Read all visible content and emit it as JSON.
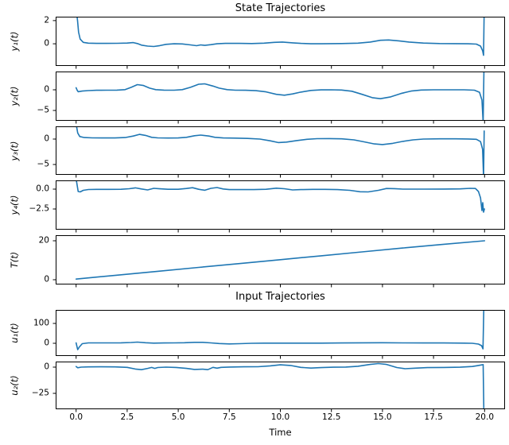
{
  "figure": {
    "state_title": "State Trajectories",
    "input_title": "Input Trajectories"
  },
  "line_color": "#1f77b4",
  "xaxis": {
    "label": "Time",
    "xlim": [
      -1,
      21
    ],
    "tick_values": [
      0,
      2.5,
      5,
      7.5,
      10,
      12.5,
      15,
      17.5,
      20
    ],
    "tick_labels": [
      "0.0",
      "2.5",
      "5.0",
      "7.5",
      "10.0",
      "12.5",
      "15.0",
      "17.5",
      "20.0"
    ]
  },
  "chart_data": [
    {
      "type": "line",
      "title": "State Trajectories",
      "ylabel": "y₁(t)",
      "ylim": [
        -1.92,
        2.34
      ],
      "yticks": [
        {
          "v": 2,
          "label": "2"
        },
        {
          "v": 0,
          "label": "0"
        }
      ],
      "points": [
        [
          0,
          3
        ],
        [
          0.07,
          2.0
        ],
        [
          0.12,
          1.0
        ],
        [
          0.2,
          0.4
        ],
        [
          0.35,
          0.12
        ],
        [
          0.6,
          0.05
        ],
        [
          1,
          0.03
        ],
        [
          1.5,
          0.03
        ],
        [
          2,
          0.04
        ],
        [
          2.5,
          0.06
        ],
        [
          2.8,
          0.1
        ],
        [
          3.0,
          0.02
        ],
        [
          3.2,
          -0.12
        ],
        [
          3.5,
          -0.2
        ],
        [
          3.8,
          -0.24
        ],
        [
          4.1,
          -0.16
        ],
        [
          4.4,
          -0.05
        ],
        [
          4.8,
          0.0
        ],
        [
          5.2,
          -0.02
        ],
        [
          5.6,
          -0.1
        ],
        [
          5.9,
          -0.17
        ],
        [
          6.1,
          -0.1
        ],
        [
          6.3,
          -0.14
        ],
        [
          6.6,
          -0.08
        ],
        [
          6.9,
          0.0
        ],
        [
          7.3,
          0.03
        ],
        [
          8,
          0.03
        ],
        [
          8.6,
          0.02
        ],
        [
          9.2,
          0.05
        ],
        [
          9.7,
          0.12
        ],
        [
          10.1,
          0.15
        ],
        [
          10.6,
          0.08
        ],
        [
          11,
          0.03
        ],
        [
          11.5,
          0.0
        ],
        [
          12,
          0.0
        ],
        [
          13,
          0.02
        ],
        [
          13.8,
          0.05
        ],
        [
          14.4,
          0.15
        ],
        [
          14.9,
          0.3
        ],
        [
          15.3,
          0.33
        ],
        [
          15.8,
          0.25
        ],
        [
          16.3,
          0.15
        ],
        [
          17,
          0.06
        ],
        [
          17.8,
          0.02
        ],
        [
          18.5,
          0.01
        ],
        [
          19.2,
          0.0
        ],
        [
          19.6,
          -0.03
        ],
        [
          19.8,
          -0.2
        ],
        [
          19.9,
          -0.6
        ],
        [
          19.95,
          -1.0
        ],
        [
          19.98,
          3
        ]
      ]
    },
    {
      "type": "line",
      "ylabel": "y₂(t)",
      "ylim": [
        -7.5,
        4.43
      ],
      "yticks": [
        {
          "v": 0,
          "label": "0"
        },
        {
          "v": -5,
          "label": "−5"
        }
      ],
      "points": [
        [
          0,
          0.5
        ],
        [
          0.05,
          -0.1
        ],
        [
          0.1,
          -0.45
        ],
        [
          0.3,
          -0.3
        ],
        [
          0.6,
          -0.18
        ],
        [
          1,
          -0.12
        ],
        [
          1.5,
          -0.1
        ],
        [
          2,
          -0.08
        ],
        [
          2.4,
          0.05
        ],
        [
          2.7,
          0.6
        ],
        [
          3.0,
          1.25
        ],
        [
          3.3,
          1.05
        ],
        [
          3.6,
          0.4
        ],
        [
          3.9,
          0.05
        ],
        [
          4.3,
          -0.08
        ],
        [
          4.8,
          -0.1
        ],
        [
          5.2,
          0.05
        ],
        [
          5.6,
          0.6
        ],
        [
          6.0,
          1.35
        ],
        [
          6.3,
          1.45
        ],
        [
          6.7,
          0.9
        ],
        [
          7.0,
          0.4
        ],
        [
          7.4,
          0.05
        ],
        [
          7.8,
          -0.1
        ],
        [
          8.3,
          -0.12
        ],
        [
          8.8,
          -0.2
        ],
        [
          9.3,
          -0.5
        ],
        [
          9.8,
          -1.1
        ],
        [
          10.2,
          -1.3
        ],
        [
          10.6,
          -1.0
        ],
        [
          11,
          -0.55
        ],
        [
          11.5,
          -0.15
        ],
        [
          12,
          -0.02
        ],
        [
          12.5,
          0.0
        ],
        [
          13,
          -0.05
        ],
        [
          13.5,
          -0.35
        ],
        [
          14,
          -1.1
        ],
        [
          14.5,
          -1.9
        ],
        [
          14.9,
          -2.15
        ],
        [
          15.4,
          -1.7
        ],
        [
          15.9,
          -0.9
        ],
        [
          16.4,
          -0.3
        ],
        [
          16.9,
          -0.05
        ],
        [
          17.5,
          0.0
        ],
        [
          18.2,
          0.0
        ],
        [
          19,
          0.0
        ],
        [
          19.5,
          -0.1
        ],
        [
          19.75,
          -0.6
        ],
        [
          19.87,
          -2.5
        ],
        [
          19.93,
          -8
        ],
        [
          19.97,
          5
        ]
      ]
    },
    {
      "type": "line",
      "ylabel": "y₃(t)",
      "ylim": [
        -7.03,
        2.5
      ],
      "yticks": [
        {
          "v": 0,
          "label": "0"
        },
        {
          "v": -5,
          "label": "−5"
        }
      ],
      "points": [
        [
          0,
          3
        ],
        [
          0.08,
          1.2
        ],
        [
          0.18,
          0.5
        ],
        [
          0.4,
          0.3
        ],
        [
          0.8,
          0.24
        ],
        [
          1.3,
          0.22
        ],
        [
          1.9,
          0.22
        ],
        [
          2.4,
          0.3
        ],
        [
          2.8,
          0.6
        ],
        [
          3.1,
          0.92
        ],
        [
          3.4,
          0.72
        ],
        [
          3.7,
          0.35
        ],
        [
          4.0,
          0.24
        ],
        [
          4.5,
          0.2
        ],
        [
          5.0,
          0.22
        ],
        [
          5.4,
          0.35
        ],
        [
          5.8,
          0.65
        ],
        [
          6.1,
          0.78
        ],
        [
          6.5,
          0.6
        ],
        [
          6.8,
          0.35
        ],
        [
          7.2,
          0.22
        ],
        [
          7.8,
          0.18
        ],
        [
          8.4,
          0.12
        ],
        [
          9.0,
          0.0
        ],
        [
          9.5,
          -0.35
        ],
        [
          9.9,
          -0.68
        ],
        [
          10.3,
          -0.6
        ],
        [
          10.8,
          -0.3
        ],
        [
          11.3,
          -0.05
        ],
        [
          11.8,
          0.08
        ],
        [
          12.4,
          0.1
        ],
        [
          13,
          0.05
        ],
        [
          13.6,
          -0.15
        ],
        [
          14.1,
          -0.55
        ],
        [
          14.6,
          -0.95
        ],
        [
          15.0,
          -1.08
        ],
        [
          15.5,
          -0.85
        ],
        [
          16,
          -0.45
        ],
        [
          16.5,
          -0.15
        ],
        [
          17,
          0.0
        ],
        [
          17.8,
          0.05
        ],
        [
          18.6,
          0.05
        ],
        [
          19.2,
          0.02
        ],
        [
          19.6,
          -0.05
        ],
        [
          19.8,
          -0.5
        ],
        [
          19.9,
          -2.0
        ],
        [
          19.95,
          -7.5
        ],
        [
          19.98,
          1.6
        ]
      ]
    },
    {
      "type": "line",
      "ylabel": "y₄(t)",
      "ylim": [
        -5.1,
        1.1
      ],
      "yticks": [
        {
          "v": 0,
          "label": "0.0"
        },
        {
          "v": -2.5,
          "label": "−2.5"
        }
      ],
      "points": [
        [
          0,
          1.3
        ],
        [
          0.05,
          0.5
        ],
        [
          0.1,
          -0.3
        ],
        [
          0.2,
          -0.35
        ],
        [
          0.35,
          -0.15
        ],
        [
          0.6,
          -0.05
        ],
        [
          1,
          -0.03
        ],
        [
          1.6,
          -0.03
        ],
        [
          2.2,
          -0.02
        ],
        [
          2.6,
          0.05
        ],
        [
          2.9,
          0.16
        ],
        [
          3.2,
          0.02
        ],
        [
          3.5,
          -0.1
        ],
        [
          3.8,
          0.1
        ],
        [
          4.1,
          0.04
        ],
        [
          4.5,
          -0.02
        ],
        [
          5,
          -0.02
        ],
        [
          5.4,
          0.08
        ],
        [
          5.7,
          0.18
        ],
        [
          6.0,
          -0.02
        ],
        [
          6.3,
          -0.14
        ],
        [
          6.6,
          0.1
        ],
        [
          6.9,
          0.2
        ],
        [
          7.2,
          0.02
        ],
        [
          7.5,
          -0.06
        ],
        [
          8,
          -0.06
        ],
        [
          8.7,
          -0.06
        ],
        [
          9.3,
          -0.02
        ],
        [
          9.8,
          0.12
        ],
        [
          10.2,
          0.05
        ],
        [
          10.6,
          -0.1
        ],
        [
          11,
          -0.06
        ],
        [
          11.6,
          -0.03
        ],
        [
          12.2,
          -0.03
        ],
        [
          12.8,
          -0.06
        ],
        [
          13.4,
          -0.15
        ],
        [
          13.9,
          -0.33
        ],
        [
          14.3,
          -0.35
        ],
        [
          14.8,
          -0.15
        ],
        [
          15.2,
          0.08
        ],
        [
          15.6,
          0.06
        ],
        [
          16,
          0.0
        ],
        [
          17,
          0.0
        ],
        [
          18,
          0.01
        ],
        [
          18.8,
          0.03
        ],
        [
          19.3,
          0.1
        ],
        [
          19.55,
          0.08
        ],
        [
          19.7,
          -0.3
        ],
        [
          19.8,
          -1.1
        ],
        [
          19.87,
          -2.7
        ],
        [
          19.91,
          -1.7
        ],
        [
          19.95,
          -2.9
        ],
        [
          19.99,
          -2.5
        ]
      ]
    },
    {
      "type": "line",
      "ylabel": "T(t)",
      "ylim": [
        -2.46,
        22.86
      ],
      "yticks": [
        {
          "v": 20,
          "label": "20"
        },
        {
          "v": 0,
          "label": "0"
        }
      ],
      "points": [
        [
          0,
          0.3
        ],
        [
          2,
          2.3
        ],
        [
          4,
          4.3
        ],
        [
          6,
          6.3
        ],
        [
          8,
          8.3
        ],
        [
          10,
          10.3
        ],
        [
          12,
          12.3
        ],
        [
          14,
          14.3
        ],
        [
          16,
          16.3
        ],
        [
          18,
          18.2
        ],
        [
          20,
          20
        ]
      ]
    },
    {
      "type": "line",
      "title": "Input Trajectories",
      "ylabel": "u₁(t)",
      "ylim": [
        -64,
        168
      ],
      "yticks": [
        {
          "v": 100,
          "label": "100"
        },
        {
          "v": 0,
          "label": "0"
        }
      ],
      "points": [
        [
          0,
          2
        ],
        [
          0.04,
          -15
        ],
        [
          0.08,
          -32
        ],
        [
          0.15,
          -20
        ],
        [
          0.3,
          -2
        ],
        [
          0.6,
          2
        ],
        [
          1,
          2
        ],
        [
          1.6,
          2
        ],
        [
          2.2,
          2.5
        ],
        [
          2.7,
          4
        ],
        [
          3.0,
          6
        ],
        [
          3.4,
          3
        ],
        [
          3.8,
          1
        ],
        [
          4.3,
          1.5
        ],
        [
          4.8,
          2
        ],
        [
          5.3,
          3
        ],
        [
          5.8,
          5
        ],
        [
          6.2,
          5
        ],
        [
          6.6,
          2
        ],
        [
          7.0,
          -1
        ],
        [
          7.5,
          -3
        ],
        [
          8,
          -2
        ],
        [
          8.6,
          0
        ],
        [
          9.2,
          1
        ],
        [
          10,
          1
        ],
        [
          11,
          1
        ],
        [
          12,
          1
        ],
        [
          13,
          1.5
        ],
        [
          14,
          2.5
        ],
        [
          15,
          3
        ],
        [
          16,
          2
        ],
        [
          17,
          1.5
        ],
        [
          18,
          1.5
        ],
        [
          19,
          1
        ],
        [
          19.4,
          0
        ],
        [
          19.7,
          -4
        ],
        [
          19.85,
          -12
        ],
        [
          19.92,
          -28
        ],
        [
          19.96,
          175
        ]
      ]
    },
    {
      "type": "line",
      "ylabel": "u₂(t)",
      "ylim": [
        -40.2,
        5.3
      ],
      "yticks": [
        {
          "v": 0,
          "label": "0"
        },
        {
          "v": -25,
          "label": "−25"
        }
      ],
      "points": [
        [
          0,
          0.6
        ],
        [
          0.08,
          -0.6
        ],
        [
          0.25,
          0.0
        ],
        [
          0.6,
          0.2
        ],
        [
          1.2,
          0.3
        ],
        [
          1.9,
          0.2
        ],
        [
          2.5,
          -0.2
        ],
        [
          2.9,
          -1.8
        ],
        [
          3.2,
          -2.4
        ],
        [
          3.5,
          -1.2
        ],
        [
          3.7,
          -0.3
        ],
        [
          3.85,
          -1.2
        ],
        [
          4.0,
          -0.4
        ],
        [
          4.4,
          0.0
        ],
        [
          4.9,
          -0.3
        ],
        [
          5.4,
          -1.2
        ],
        [
          5.8,
          -2.2
        ],
        [
          6.2,
          -2.0
        ],
        [
          6.45,
          -2.4
        ],
        [
          6.7,
          -0.2
        ],
        [
          6.9,
          -1.0
        ],
        [
          7.1,
          -0.2
        ],
        [
          7.5,
          0.1
        ],
        [
          8.2,
          0.3
        ],
        [
          8.9,
          0.4
        ],
        [
          9.5,
          1.2
        ],
        [
          10.0,
          2.2
        ],
        [
          10.5,
          1.6
        ],
        [
          11.0,
          -0.2
        ],
        [
          11.5,
          -0.9
        ],
        [
          12.0,
          -0.5
        ],
        [
          12.6,
          -0.1
        ],
        [
          13.2,
          0.1
        ],
        [
          13.8,
          0.8
        ],
        [
          14.4,
          2.6
        ],
        [
          14.8,
          3.4
        ],
        [
          15.2,
          2.6
        ],
        [
          15.7,
          -0.4
        ],
        [
          16.1,
          -1.5
        ],
        [
          16.6,
          -1.0
        ],
        [
          17.2,
          -0.5
        ],
        [
          18,
          -0.3
        ],
        [
          18.8,
          -0.1
        ],
        [
          19.4,
          0.6
        ],
        [
          19.7,
          1.6
        ],
        [
          19.88,
          2.2
        ],
        [
          19.93,
          2.4
        ],
        [
          19.96,
          -39
        ]
      ]
    }
  ]
}
